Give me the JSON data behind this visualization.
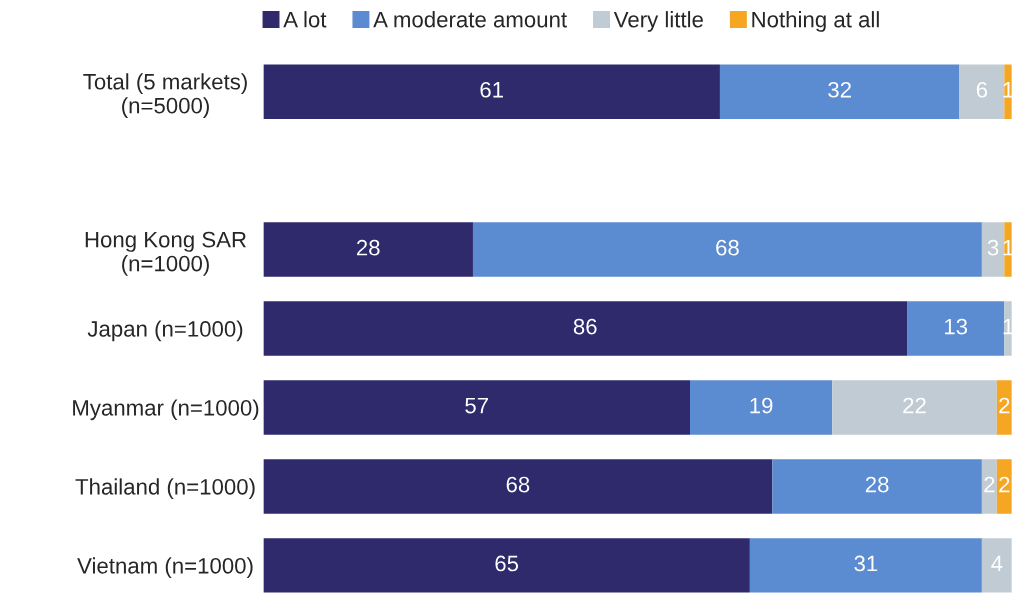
{
  "chart_data": {
    "type": "bar",
    "orientation": "horizontal",
    "stacked": true,
    "categories": [
      "Total (5 markets)\n(n=5000)",
      null,
      "Hong Kong SAR\n(n=1000)",
      "Japan (n=1000)",
      "Myanmar (n=1000)",
      "Thailand (n=1000)",
      "Vietnam (n=1000)"
    ],
    "series": [
      {
        "name": "A lot",
        "color": "#2e2a6b",
        "values": [
          61,
          null,
          28,
          86,
          57,
          68,
          65
        ]
      },
      {
        "name": "A moderate amount",
        "color": "#5b8bd0",
        "values": [
          32,
          null,
          68,
          13,
          19,
          28,
          31
        ]
      },
      {
        "name": "Very little",
        "color": "#c0cbd3",
        "values": [
          6,
          null,
          3,
          1,
          22,
          2,
          4
        ]
      },
      {
        "name": "Nothing at all",
        "color": "#f5a623",
        "values": [
          1,
          null,
          1,
          null,
          2,
          2,
          null
        ]
      }
    ],
    "xlim": [
      0,
      100
    ],
    "tick_labels": "y",
    "data_labels": true,
    "legend": "top",
    "grid": false
  }
}
